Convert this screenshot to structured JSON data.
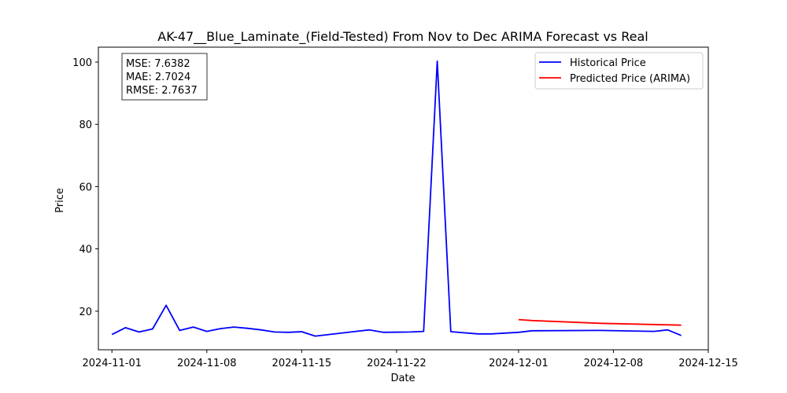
{
  "chart_data": {
    "type": "line",
    "title": "AK-47__Blue_Laminate_(Field-Tested) From Nov to Dec ARIMA Forecast vs Real",
    "xlabel": "Date",
    "ylabel": "Price",
    "xlim": [
      "2024-10-31",
      "2024-12-15"
    ],
    "ylim": [
      7.6,
      104.8
    ],
    "x_ticks": [
      "2024-11-01",
      "2024-11-08",
      "2024-11-15",
      "2024-11-22",
      "2024-12-01",
      "2024-12-08",
      "2024-12-15"
    ],
    "y_ticks": [
      20,
      40,
      60,
      80,
      100
    ],
    "grid": false,
    "legend_position": "upper right",
    "metrics_box": {
      "lines": [
        "MSE: 7.6382",
        "MAE: 2.7024",
        "RMSE: 2.7637"
      ],
      "position": "upper left"
    },
    "series": [
      {
        "name": "Historical Price",
        "color": "#0000ff",
        "points": [
          {
            "x": "2024-11-01",
            "y": 12.5
          },
          {
            "x": "2024-11-02",
            "y": 14.7
          },
          {
            "x": "2024-11-03",
            "y": 13.3
          },
          {
            "x": "2024-11-04",
            "y": 14.3
          },
          {
            "x": "2024-11-05",
            "y": 21.9
          },
          {
            "x": "2024-11-06",
            "y": 13.8
          },
          {
            "x": "2024-11-07",
            "y": 14.9
          },
          {
            "x": "2024-11-08",
            "y": 13.5
          },
          {
            "x": "2024-11-09",
            "y": 14.4
          },
          {
            "x": "2024-11-10",
            "y": 14.9
          },
          {
            "x": "2024-11-11",
            "y": 14.5
          },
          {
            "x": "2024-11-12",
            "y": 14.0
          },
          {
            "x": "2024-11-13",
            "y": 13.3
          },
          {
            "x": "2024-11-14",
            "y": 13.2
          },
          {
            "x": "2024-11-15",
            "y": 13.4
          },
          {
            "x": "2024-11-16",
            "y": 12.0
          },
          {
            "x": "2024-11-19",
            "y": 13.5
          },
          {
            "x": "2024-11-20",
            "y": 14.0
          },
          {
            "x": "2024-11-21",
            "y": 13.2
          },
          {
            "x": "2024-11-23",
            "y": 13.3
          },
          {
            "x": "2024-11-24",
            "y": 13.5
          },
          {
            "x": "2024-11-25",
            "y": 100.3
          },
          {
            "x": "2024-11-26",
            "y": 13.4
          },
          {
            "x": "2024-11-28",
            "y": 12.7
          },
          {
            "x": "2024-11-29",
            "y": 12.7
          },
          {
            "x": "2024-12-01",
            "y": 13.2
          },
          {
            "x": "2024-12-02",
            "y": 13.7
          },
          {
            "x": "2024-12-07",
            "y": 13.8
          },
          {
            "x": "2024-12-11",
            "y": 13.5
          },
          {
            "x": "2024-12-12",
            "y": 14.0
          },
          {
            "x": "2024-12-13",
            "y": 12.2
          }
        ]
      },
      {
        "name": "Predicted Price (ARIMA)",
        "color": "#ff0000",
        "points": [
          {
            "x": "2024-12-01",
            "y": 17.3
          },
          {
            "x": "2024-12-02",
            "y": 17.0
          },
          {
            "x": "2024-12-07",
            "y": 16.1
          },
          {
            "x": "2024-12-13",
            "y": 15.5
          }
        ]
      }
    ]
  }
}
